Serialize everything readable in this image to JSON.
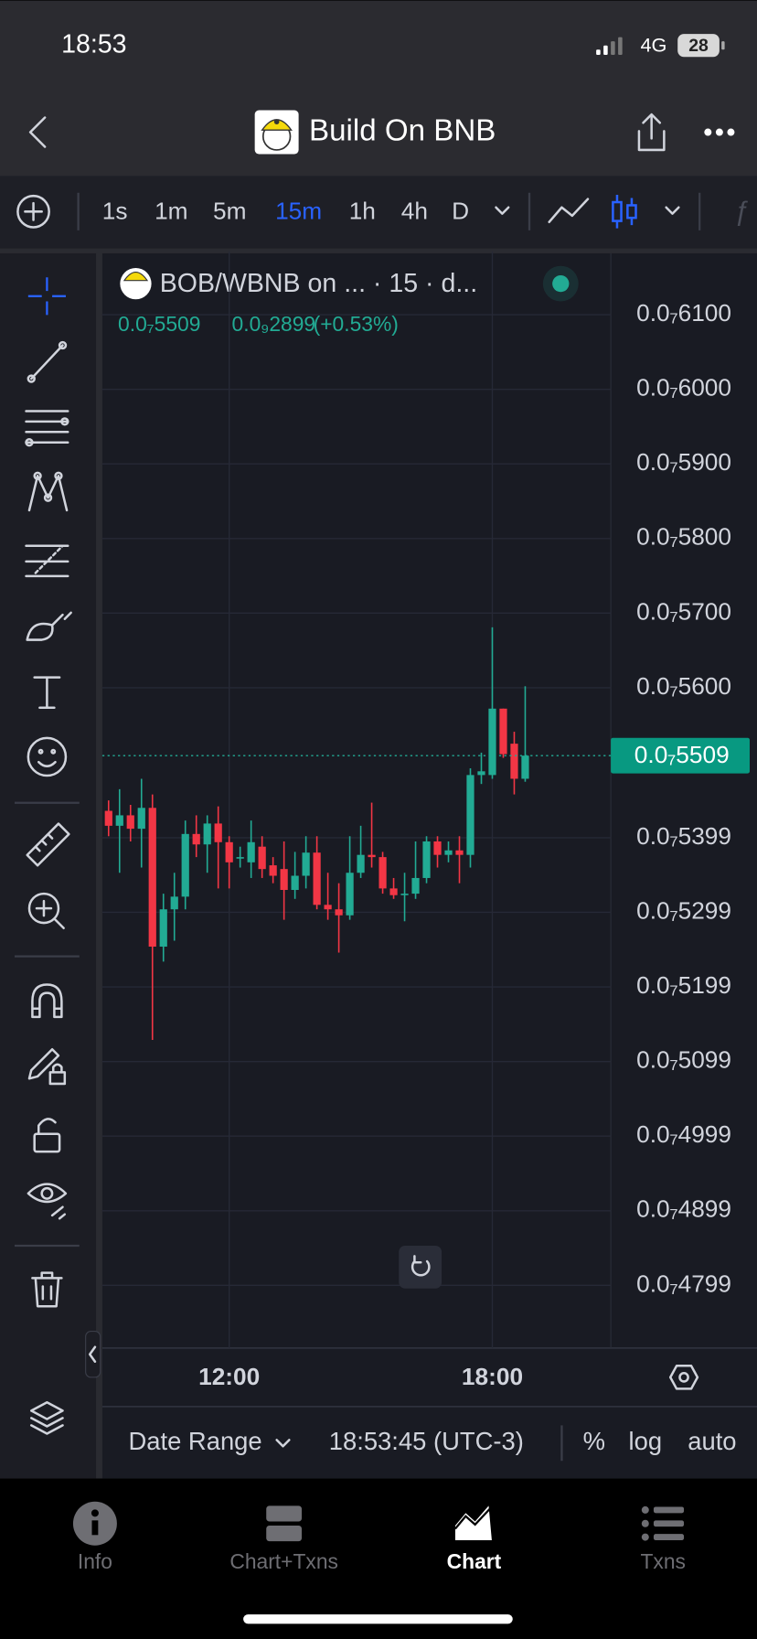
{
  "status_bar": {
    "time": "18:53",
    "network": "4G",
    "battery": "28"
  },
  "header": {
    "title": "Build On BNB"
  },
  "toolbar": {
    "intervals": [
      "1s",
      "1m",
      "5m",
      "15m",
      "1h",
      "4h",
      "D"
    ],
    "active_interval": "15m"
  },
  "chart_data": {
    "type": "candlestick",
    "legend_title": "BOB/WBNB on ...  · 15 · d...",
    "last_price_label": "0.0₇5509",
    "change_label": "0.0₉2899",
    "change_pct_label": "(+0.53%)",
    "up_color": "#22ab94",
    "down_color": "#f23645",
    "x": [
      "09:15",
      "09:30",
      "09:45",
      "10:00",
      "10:15",
      "10:30",
      "10:45",
      "11:00",
      "11:15",
      "11:30",
      "11:45",
      "12:00",
      "12:15",
      "12:30",
      "12:45",
      "13:00",
      "13:15",
      "13:30",
      "13:45",
      "14:00",
      "14:15",
      "14:30",
      "14:45",
      "15:00",
      "15:15",
      "15:30",
      "15:45",
      "16:00",
      "16:15",
      "16:30",
      "16:45",
      "17:00",
      "17:15",
      "17:30",
      "17:45",
      "18:00",
      "18:15",
      "18:30",
      "18:45"
    ],
    "open": [
      5.435e-08,
      5.415e-08,
      5.429e-08,
      5.411e-08,
      5.439e-08,
      5.253e-08,
      5.303e-08,
      5.32e-08,
      5.404e-08,
      5.39e-08,
      5.418e-08,
      5.393e-08,
      5.371e-08,
      5.366e-08,
      5.387e-08,
      5.362e-08,
      5.357e-08,
      5.329e-08,
      5.348e-08,
      5.379e-08,
      5.309e-08,
      5.303e-08,
      5.295e-08,
      5.352e-08,
      5.376e-08,
      5.373e-08,
      5.331e-08,
      5.322e-08,
      5.324e-08,
      5.345e-08,
      5.394e-08,
      5.376e-08,
      5.382e-08,
      5.376e-08,
      5.483e-08,
      5.483e-08,
      5.572e-08,
      5.525e-08,
      5.478e-08
    ],
    "high": [
      5.449e-08,
      5.464e-08,
      5.443e-08,
      5.478e-08,
      5.457e-08,
      5.324e-08,
      5.352e-08,
      5.422e-08,
      5.429e-08,
      5.429e-08,
      5.441e-08,
      5.401e-08,
      5.387e-08,
      5.422e-08,
      5.401e-08,
      5.373e-08,
      5.394e-08,
      5.38e-08,
      5.401e-08,
      5.401e-08,
      5.352e-08,
      5.338e-08,
      5.401e-08,
      5.415e-08,
      5.446e-08,
      5.38e-08,
      5.345e-08,
      5.352e-08,
      5.394e-08,
      5.401e-08,
      5.401e-08,
      5.394e-08,
      5.401e-08,
      5.492e-08,
      5.513e-08,
      5.681e-08,
      5.572e-08,
      5.541e-08,
      5.602e-08
    ],
    "low": [
      5.401e-08,
      5.352e-08,
      5.394e-08,
      5.359e-08,
      5.128e-08,
      5.233e-08,
      5.261e-08,
      5.303e-08,
      5.373e-08,
      5.352e-08,
      5.331e-08,
      5.331e-08,
      5.359e-08,
      5.345e-08,
      5.345e-08,
      5.338e-08,
      5.289e-08,
      5.317e-08,
      5.331e-08,
      5.303e-08,
      5.289e-08,
      5.245e-08,
      5.289e-08,
      5.345e-08,
      5.359e-08,
      5.324e-08,
      5.317e-08,
      5.287e-08,
      5.317e-08,
      5.338e-08,
      5.359e-08,
      5.366e-08,
      5.338e-08,
      5.359e-08,
      5.471e-08,
      5.478e-08,
      5.506e-08,
      5.457e-08,
      5.474e-08
    ],
    "close": [
      5.415e-08,
      5.429e-08,
      5.411e-08,
      5.439e-08,
      5.253e-08,
      5.303e-08,
      5.32e-08,
      5.404e-08,
      5.39e-08,
      5.418e-08,
      5.393e-08,
      5.366e-08,
      5.373e-08,
      5.393e-08,
      5.357e-08,
      5.348e-08,
      5.329e-08,
      5.348e-08,
      5.379e-08,
      5.309e-08,
      5.303e-08,
      5.295e-08,
      5.352e-08,
      5.376e-08,
      5.373e-08,
      5.331e-08,
      5.322e-08,
      5.324e-08,
      5.345e-08,
      5.394e-08,
      5.376e-08,
      5.382e-08,
      5.376e-08,
      5.483e-08,
      5.488e-08,
      5.572e-08,
      5.511e-08,
      5.478e-08,
      5.509e-08
    ],
    "ylim": [
      4.715e-08,
      6.185e-08
    ],
    "yticks": [
      {
        "value": 6.1e-08,
        "label": "0.0₇6100"
      },
      {
        "value": 6e-08,
        "label": "0.0₇6000"
      },
      {
        "value": 5.9e-08,
        "label": "0.0₇5900"
      },
      {
        "value": 5.8e-08,
        "label": "0.0₇5800"
      },
      {
        "value": 5.7e-08,
        "label": "0.0₇5700"
      },
      {
        "value": 5.6e-08,
        "label": "0.0₇5600"
      },
      {
        "value": 5.399e-08,
        "label": "0.0₇5399"
      },
      {
        "value": 5.299e-08,
        "label": "0.0₇5299"
      },
      {
        "value": 5.199e-08,
        "label": "0.0₇5199"
      },
      {
        "value": 5.099e-08,
        "label": "0.0₇5099"
      },
      {
        "value": 4.999e-08,
        "label": "0.0₇4999"
      },
      {
        "value": 4.899e-08,
        "label": "0.0₇4899"
      },
      {
        "value": 4.799e-08,
        "label": "0.0₇4799"
      }
    ],
    "xticks": [
      "12:00",
      "18:00"
    ],
    "grid": true
  },
  "bottom_bar": {
    "date_range": "Date Range",
    "clock": "18:53:45 (UTC-3)",
    "percent": "%",
    "log": "log",
    "auto": "auto"
  },
  "tabs": [
    {
      "label": "Info"
    },
    {
      "label": "Chart+Txns"
    },
    {
      "label": "Chart"
    },
    {
      "label": "Txns"
    }
  ],
  "active_tab": "Chart"
}
